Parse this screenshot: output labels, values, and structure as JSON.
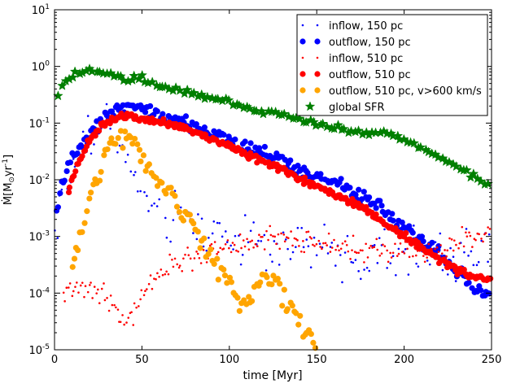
{
  "chart_data": {
    "type": "scatter",
    "title": "",
    "xlabel": "time [Myr]",
    "ylabel": "Ṁ[M⊙yr⁻¹]",
    "ylabel_parts": {
      "m": "Ṁ[M",
      "sun": "⊙",
      "yr": "yr",
      "exp": "-1",
      "close": "]"
    },
    "xlim": [
      0,
      250
    ],
    "ylim_log10": [
      -5,
      1
    ],
    "y_scale": "log",
    "x_ticks": [
      {
        "value": 0,
        "label": "0"
      },
      {
        "value": 50,
        "label": "50"
      },
      {
        "value": 100,
        "label": "100"
      },
      {
        "value": 150,
        "label": "150"
      },
      {
        "value": 200,
        "label": "200"
      },
      {
        "value": 250,
        "label": "250"
      }
    ],
    "y_ticks": [
      {
        "exp": -5,
        "base": "10",
        "sup": "-5"
      },
      {
        "exp": -4,
        "base": "10",
        "sup": "-4"
      },
      {
        "exp": -3,
        "base": "10",
        "sup": "-3"
      },
      {
        "exp": -2,
        "base": "10",
        "sup": "-2"
      },
      {
        "exp": -1,
        "base": "10",
        "sup": "-1"
      },
      {
        "exp": 0,
        "base": "10",
        "sup": "0"
      },
      {
        "exp": 1,
        "base": "10",
        "sup": "1"
      }
    ],
    "legend_position": "top-right",
    "series": [
      {
        "name": "inflow, 150 pc",
        "color": "#0000ff",
        "marker": "small-dot",
        "step": 1.5,
        "noise": 0.45,
        "knots": [
          [
            0,
            -2.8
          ],
          [
            5,
            -2.3
          ],
          [
            10,
            -1.8
          ],
          [
            20,
            -1.2
          ],
          [
            30,
            -1.0
          ],
          [
            35,
            -1.1
          ],
          [
            40,
            -1.6
          ],
          [
            50,
            -2.3
          ],
          [
            60,
            -2.6
          ],
          [
            80,
            -2.8
          ],
          [
            100,
            -3.0
          ],
          [
            120,
            -3.1
          ],
          [
            140,
            -3.2
          ],
          [
            160,
            -3.3
          ],
          [
            180,
            -3.4
          ],
          [
            200,
            -3.3
          ],
          [
            220,
            -3.3
          ],
          [
            240,
            -3.3
          ],
          [
            250,
            -3.4
          ]
        ]
      },
      {
        "name": "outflow, 150 pc",
        "color": "#0000ff",
        "marker": "dot",
        "step": 1.0,
        "noise": 0.12,
        "knots": [
          [
            1,
            -2.6
          ],
          [
            5,
            -2.0
          ],
          [
            10,
            -1.6
          ],
          [
            20,
            -1.2
          ],
          [
            30,
            -0.85
          ],
          [
            35,
            -0.75
          ],
          [
            40,
            -0.72
          ],
          [
            50,
            -0.78
          ],
          [
            75,
            -1.0
          ],
          [
            100,
            -1.3
          ],
          [
            125,
            -1.6
          ],
          [
            150,
            -1.95
          ],
          [
            170,
            -2.2
          ],
          [
            180,
            -2.4
          ],
          [
            190,
            -2.6
          ],
          [
            200,
            -2.8
          ],
          [
            210,
            -3.1
          ],
          [
            220,
            -3.3
          ],
          [
            230,
            -3.6
          ],
          [
            240,
            -3.9
          ],
          [
            250,
            -4.0
          ]
        ]
      },
      {
        "name": "inflow, 510 pc",
        "color": "#ff0000",
        "marker": "small-dot",
        "step": 1.0,
        "noise": 0.18,
        "knots": [
          [
            5,
            -4.0
          ],
          [
            15,
            -4.0
          ],
          [
            25,
            -3.9
          ],
          [
            30,
            -4.1
          ],
          [
            35,
            -4.2
          ],
          [
            40,
            -4.5
          ],
          [
            45,
            -4.4
          ],
          [
            50,
            -4.0
          ],
          [
            60,
            -3.7
          ],
          [
            70,
            -3.5
          ],
          [
            80,
            -3.4
          ],
          [
            90,
            -3.3
          ],
          [
            100,
            -3.2
          ],
          [
            110,
            -3.1
          ],
          [
            120,
            -3.0
          ],
          [
            130,
            -3.05
          ],
          [
            140,
            -3.1
          ],
          [
            150,
            -3.1
          ],
          [
            160,
            -3.2
          ],
          [
            170,
            -3.2
          ],
          [
            180,
            -3.2
          ],
          [
            190,
            -3.25
          ],
          [
            200,
            -3.2
          ],
          [
            210,
            -3.3
          ],
          [
            220,
            -3.25
          ],
          [
            230,
            -3.1
          ],
          [
            240,
            -3.0
          ],
          [
            250,
            -2.9
          ]
        ]
      },
      {
        "name": "outflow, 510 pc",
        "color": "#ff0000",
        "marker": "dot",
        "step": 0.8,
        "noise": 0.06,
        "knots": [
          [
            8,
            -2.2
          ],
          [
            12,
            -1.8
          ],
          [
            20,
            -1.3
          ],
          [
            30,
            -0.97
          ],
          [
            40,
            -0.85
          ],
          [
            50,
            -0.9
          ],
          [
            75,
            -1.1
          ],
          [
            100,
            -1.4
          ],
          [
            125,
            -1.75
          ],
          [
            150,
            -2.1
          ],
          [
            170,
            -2.4
          ],
          [
            180,
            -2.55
          ],
          [
            190,
            -2.8
          ],
          [
            200,
            -3.0
          ],
          [
            210,
            -3.2
          ],
          [
            220,
            -3.4
          ],
          [
            230,
            -3.6
          ],
          [
            240,
            -3.7
          ],
          [
            250,
            -3.75
          ]
        ]
      },
      {
        "name": "outflow, 510 pc, v>600 km/s",
        "color": "#ffa500",
        "marker": "dot",
        "step": 1.2,
        "noise": 0.2,
        "knots": [
          [
            10,
            -3.6
          ],
          [
            15,
            -3.0
          ],
          [
            20,
            -2.3
          ],
          [
            25,
            -1.9
          ],
          [
            30,
            -1.5
          ],
          [
            35,
            -1.3
          ],
          [
            40,
            -1.2
          ],
          [
            45,
            -1.3
          ],
          [
            50,
            -1.6
          ],
          [
            60,
            -2.0
          ],
          [
            70,
            -2.4
          ],
          [
            80,
            -2.9
          ],
          [
            90,
            -3.4
          ],
          [
            100,
            -3.9
          ],
          [
            110,
            -4.2
          ],
          [
            120,
            -3.7
          ],
          [
            130,
            -4.0
          ],
          [
            140,
            -4.5
          ],
          [
            150,
            -4.9
          ]
        ]
      },
      {
        "name": "global SFR",
        "color": "#007f00",
        "marker": "star",
        "step": 2.0,
        "noise": 0.05,
        "knots": [
          [
            0,
            -0.65
          ],
          [
            5,
            -0.3
          ],
          [
            10,
            -0.15
          ],
          [
            20,
            -0.1
          ],
          [
            30,
            -0.15
          ],
          [
            40,
            -0.22
          ],
          [
            50,
            -0.2
          ],
          [
            60,
            -0.35
          ],
          [
            70,
            -0.4
          ],
          [
            80,
            -0.5
          ],
          [
            90,
            -0.55
          ],
          [
            100,
            -0.6
          ],
          [
            110,
            -0.75
          ],
          [
            120,
            -0.8
          ],
          [
            130,
            -0.85
          ],
          [
            140,
            -0.95
          ],
          [
            150,
            -1.0
          ],
          [
            160,
            -1.05
          ],
          [
            170,
            -1.15
          ],
          [
            180,
            -1.2
          ],
          [
            190,
            -1.15
          ],
          [
            200,
            -1.3
          ],
          [
            210,
            -1.45
          ],
          [
            220,
            -1.6
          ],
          [
            230,
            -1.75
          ],
          [
            240,
            -1.95
          ],
          [
            250,
            -2.15
          ]
        ]
      }
    ]
  }
}
